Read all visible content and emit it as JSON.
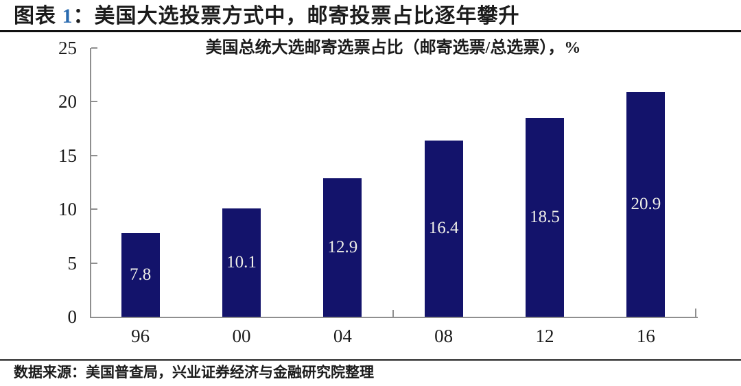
{
  "header": {
    "prefix": "图表 ",
    "number": "1",
    "rest": "：美国大选投票方式中，邮寄投票占比逐年攀升"
  },
  "source": {
    "text": "数据来源：美国普查局，兴业证券经济与金融研究院整理"
  },
  "chart_data": {
    "type": "bar",
    "title": "美国总统大选邮寄选票占比（邮寄选票/总选票），%",
    "categories": [
      "96",
      "00",
      "04",
      "08",
      "12",
      "16"
    ],
    "values": [
      7.8,
      10.1,
      12.9,
      16.4,
      18.5,
      20.9
    ],
    "xlabel": "",
    "ylabel": "",
    "ylim": [
      0,
      25
    ],
    "y_ticks": [
      0,
      5,
      10,
      15,
      20,
      25
    ],
    "grid": false,
    "legend_position": "none",
    "bar_color": "#13136b",
    "value_label_color": "#efefe8",
    "axis_color": "#8f8f8f",
    "accent_color": "#2a6bb0"
  }
}
